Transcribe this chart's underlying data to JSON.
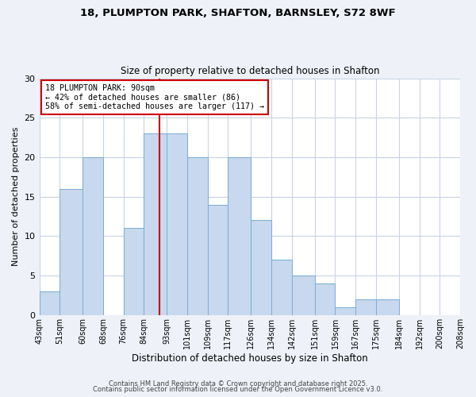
{
  "title1": "18, PLUMPTON PARK, SHAFTON, BARNSLEY, S72 8WF",
  "title2": "Size of property relative to detached houses in Shafton",
  "xlabel": "Distribution of detached houses by size in Shafton",
  "ylabel": "Number of detached properties",
  "bin_labels": [
    "43sqm",
    "51sqm",
    "60sqm",
    "68sqm",
    "76sqm",
    "84sqm",
    "93sqm",
    "101sqm",
    "109sqm",
    "117sqm",
    "126sqm",
    "134sqm",
    "142sqm",
    "151sqm",
    "159sqm",
    "167sqm",
    "175sqm",
    "184sqm",
    "192sqm",
    "200sqm",
    "208sqm"
  ],
  "bin_edges": [
    43,
    51,
    60,
    68,
    76,
    84,
    93,
    101,
    109,
    117,
    126,
    134,
    142,
    151,
    159,
    167,
    175,
    184,
    192,
    200,
    208
  ],
  "counts": [
    3,
    16,
    20,
    0,
    11,
    23,
    23,
    20,
    14,
    20,
    12,
    7,
    5,
    4,
    1,
    2,
    2,
    0,
    0,
    0
  ],
  "bar_color": "#c8d8ee",
  "bar_edge_color": "#7aadd4",
  "vline_x": 90,
  "annotation_title": "18 PLUMPTON PARK: 90sqm",
  "annotation_line1": "← 42% of detached houses are smaller (86)",
  "annotation_line2": "58% of semi-detached houses are larger (117) →",
  "box_color": "#ffffff",
  "box_edge_color": "#cc0000",
  "vline_color": "#cc0000",
  "ylim": [
    0,
    30
  ],
  "yticks": [
    0,
    5,
    10,
    15,
    20,
    25,
    30
  ],
  "footer1": "Contains HM Land Registry data © Crown copyright and database right 2025.",
  "footer2": "Contains public sector information licensed under the Open Government Licence v3.0.",
  "bg_color": "#eef2f8",
  "plot_bg_color": "#ffffff",
  "grid_color": "#c8d4e4"
}
